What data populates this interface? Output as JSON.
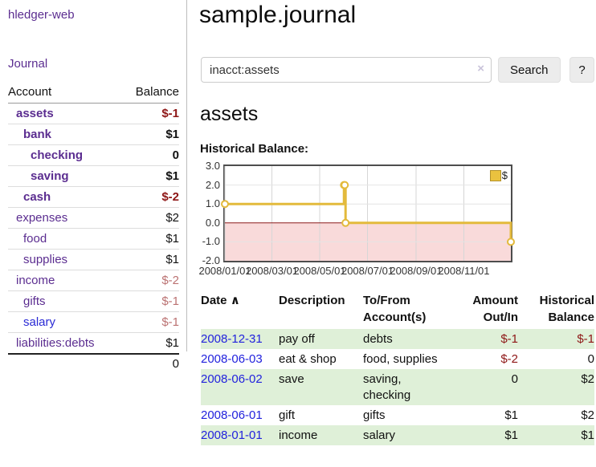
{
  "colors": {
    "link_purple": "#5b2d90",
    "link_blue": "#2a2ad5",
    "date_link_blue": "#2222dd",
    "negative_strong": "#8e1616",
    "negative_soft": "#bb7272",
    "row_stripe_green": "#dff0d8",
    "chart_line_gold": "#e3ba3c",
    "chart_negative_region": "#f9dada",
    "chart_zero_line": "#8b1a1a"
  },
  "sidebar": {
    "brand": "hledger-web",
    "nav": {
      "journal": "Journal"
    },
    "table": {
      "account_header": "Account",
      "balance_header": "Balance"
    },
    "accounts": [
      {
        "name": "assets",
        "balance": "$-1"
      },
      {
        "name": "bank",
        "balance": "$1"
      },
      {
        "name": "checking",
        "balance": "0"
      },
      {
        "name": "saving",
        "balance": "$1"
      },
      {
        "name": "cash",
        "balance": "$-2"
      },
      {
        "name": "expenses",
        "balance": "$2"
      },
      {
        "name": "food",
        "balance": "$1"
      },
      {
        "name": "supplies",
        "balance": "$1"
      },
      {
        "name": "income",
        "balance": "$-2"
      },
      {
        "name": "gifts",
        "balance": "$-1"
      },
      {
        "name": "salary",
        "balance": "$-1"
      },
      {
        "name": "liabilities:debts",
        "balance": "$1"
      }
    ],
    "total": "0"
  },
  "main": {
    "title": "sample.journal",
    "search": {
      "value": "inacct:assets",
      "clear_icon": "×",
      "search_button": "Search",
      "help_button": "?"
    },
    "account_heading": "assets",
    "chart_title": "Historical Balance:"
  },
  "chart_data": {
    "type": "line",
    "title": "Historical Balance:",
    "step": true,
    "series": [
      {
        "name": "$",
        "points": [
          [
            "2008-01-01",
            1.0
          ],
          [
            "2008-06-01",
            2.0
          ],
          [
            "2008-06-02",
            2.0
          ],
          [
            "2008-06-03",
            0.0
          ],
          [
            "2008-12-31",
            -1.0
          ]
        ]
      }
    ],
    "xlim": [
      "2008-01-01",
      "2008-12-31"
    ],
    "ylim": [
      -2.0,
      3.0
    ],
    "y_ticks": [
      "3.0",
      "2.0",
      "1.0",
      "0.0",
      "-1.0",
      "-2.0"
    ],
    "x_ticks": [
      "2008/01/01",
      "2008/03/01",
      "2008/05/01",
      "2008/07/01",
      "2008/09/01",
      "2008/11/01"
    ],
    "grid": true,
    "legend": [
      {
        "label": "$",
        "color": "#eac23f"
      }
    ],
    "legend_position": "top-right",
    "negative_region_color": "#f9dada",
    "line_color": "#e3ba3c",
    "zero_line_color": "#8b1a1a"
  },
  "register": {
    "columns": [
      "Date",
      "Description",
      "To/From Account(s)",
      "Amount Out/In",
      "Historical Balance"
    ],
    "sort_icon": "∧",
    "rows": [
      {
        "date": "2008-12-31",
        "description": "pay off",
        "accounts": "debts",
        "amount": "$-1",
        "balance": "$-1"
      },
      {
        "date": "2008-06-03",
        "description": "eat & shop",
        "accounts": "food, supplies",
        "amount": "$-2",
        "balance": "0"
      },
      {
        "date": "2008-06-02",
        "description": "save",
        "accounts": "saving, checking",
        "amount": "0",
        "balance": "$2"
      },
      {
        "date": "2008-06-01",
        "description": "gift",
        "accounts": "gifts",
        "amount": "$1",
        "balance": "$2"
      },
      {
        "date": "2008-01-01",
        "description": "income",
        "accounts": "salary",
        "amount": "$1",
        "balance": "$1"
      }
    ]
  }
}
